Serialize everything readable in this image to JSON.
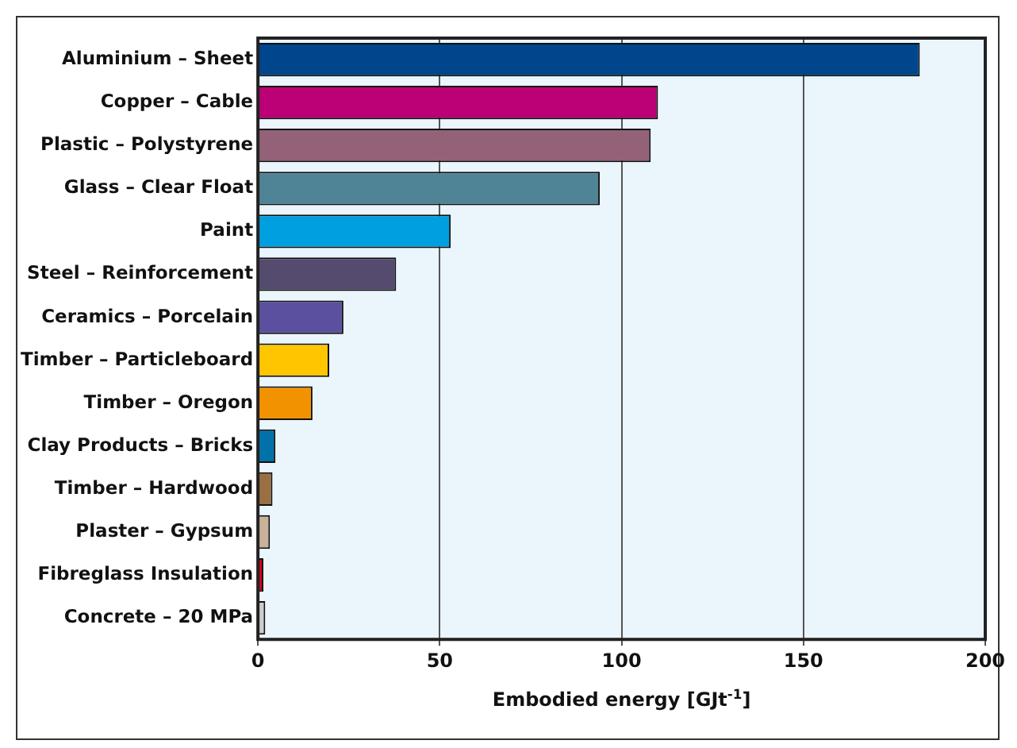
{
  "chart_data": {
    "type": "bar",
    "orientation": "horizontal",
    "xlabel": "Embodied energy [GJt$^{-1}$]",
    "categories": [
      "Aluminium – Sheet",
      "Copper – Cable",
      "Plastic – Polystyrene",
      "Glass – Clear Float",
      "Paint",
      "Steel – Reinforcement",
      "Ceramics – Porcelain",
      "Timber – Particleboard",
      "Timber – Oregon",
      "Clay Products – Bricks",
      "Timber – Hardwood",
      "Plaster – Gypsum",
      "Fibreglass Insulation",
      "Concrete – 20 MPa"
    ],
    "values": [
      182,
      110,
      108,
      94,
      53,
      38,
      23.5,
      19.6,
      15,
      4.8,
      4,
      3.3,
      1.5,
      2
    ],
    "colors": [
      "#00468c",
      "#bc0076",
      "#936279",
      "#4f8496",
      "#009fdf",
      "#554b6e",
      "#5b4f9f",
      "#ffc600",
      "#f39200",
      "#0072a9",
      "#9a7043",
      "#c9b29a",
      "#d8001c",
      "#cccccc"
    ],
    "xlim": [
      0,
      200
    ],
    "xticks": [
      0,
      50,
      100,
      150,
      200
    ],
    "grid": "x",
    "legend": false
  }
}
